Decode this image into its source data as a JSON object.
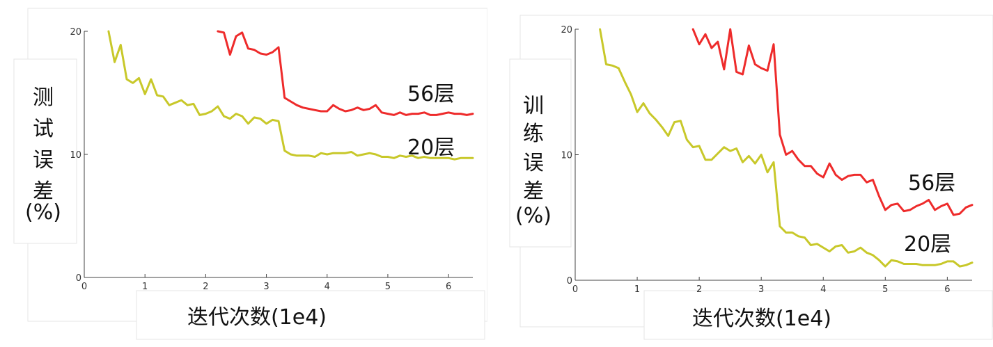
{
  "chart_data": [
    {
      "type": "line",
      "ylabel": "测试误差(%)",
      "ylabel_lines": [
        "测",
        "试",
        "误",
        "差",
        "(%)"
      ],
      "xlabel": "迭代次数(1e4)",
      "xlim": [
        0,
        6.4
      ],
      "ylim": [
        0,
        20
      ],
      "xticks": [
        "0",
        "1",
        "2",
        "3",
        "4",
        "5",
        "6"
      ],
      "yticks": [
        "0",
        "10",
        "20"
      ],
      "series": [
        {
          "name": "56层",
          "color": "#ee2b2b",
          "x": [
            2.2,
            2.3,
            2.4,
            2.5,
            2.6,
            2.7,
            2.8,
            2.9,
            3.0,
            3.1,
            3.2,
            3.3,
            3.4,
            3.5,
            3.6,
            3.7,
            3.8,
            3.9,
            4.0,
            4.1,
            4.2,
            4.3,
            4.4,
            4.5,
            4.6,
            4.7,
            4.8,
            4.9,
            5.0,
            5.1,
            5.2,
            5.3,
            5.4,
            5.5,
            5.6,
            5.7,
            5.8,
            5.9,
            6.0,
            6.1,
            6.2,
            6.3,
            6.4
          ],
          "y": [
            20.0,
            19.9,
            18.1,
            19.6,
            19.9,
            18.6,
            18.5,
            18.2,
            18.1,
            18.3,
            18.7,
            14.6,
            14.3,
            14.0,
            13.8,
            13.7,
            13.6,
            13.5,
            13.5,
            14.0,
            13.7,
            13.5,
            13.6,
            13.8,
            13.6,
            13.7,
            14.0,
            13.4,
            13.3,
            13.2,
            13.4,
            13.2,
            13.3,
            13.3,
            13.4,
            13.2,
            13.2,
            13.3,
            13.4,
            13.3,
            13.3,
            13.2,
            13.3
          ]
        },
        {
          "name": "20层",
          "color": "#c8c82a",
          "x": [
            0.4,
            0.5,
            0.6,
            0.7,
            0.8,
            0.9,
            1.0,
            1.1,
            1.2,
            1.3,
            1.4,
            1.5,
            1.6,
            1.7,
            1.8,
            1.9,
            2.0,
            2.1,
            2.2,
            2.3,
            2.4,
            2.5,
            2.6,
            2.7,
            2.8,
            2.9,
            3.0,
            3.1,
            3.2,
            3.3,
            3.4,
            3.5,
            3.6,
            3.7,
            3.8,
            3.9,
            4.0,
            4.1,
            4.2,
            4.3,
            4.4,
            4.5,
            4.6,
            4.7,
            4.8,
            4.9,
            5.0,
            5.1,
            5.2,
            5.3,
            5.4,
            5.5,
            5.6,
            5.7,
            5.8,
            5.9,
            6.0,
            6.1,
            6.2,
            6.3,
            6.4
          ],
          "y": [
            20.0,
            17.5,
            18.9,
            16.1,
            15.8,
            16.2,
            14.9,
            16.1,
            14.8,
            14.7,
            14.0,
            14.2,
            14.4,
            14.0,
            14.1,
            13.2,
            13.3,
            13.5,
            13.9,
            13.1,
            12.9,
            13.3,
            13.1,
            12.5,
            13.0,
            12.9,
            12.5,
            12.8,
            12.7,
            10.3,
            10.0,
            9.9,
            9.9,
            9.9,
            9.8,
            10.1,
            10.0,
            10.1,
            10.1,
            10.1,
            10.2,
            9.9,
            10.0,
            10.1,
            10.0,
            9.8,
            9.8,
            9.7,
            9.9,
            9.8,
            9.9,
            9.7,
            9.8,
            9.7,
            9.7,
            9.7,
            9.7,
            9.6,
            9.7,
            9.7,
            9.7
          ]
        }
      ]
    },
    {
      "type": "line",
      "ylabel": "训练误差(%)",
      "ylabel_lines": [
        "训",
        "练",
        "误",
        "差",
        "(%)"
      ],
      "xlabel": "迭代次数(1e4)",
      "xlim": [
        0,
        6.4
      ],
      "ylim": [
        0,
        20
      ],
      "xticks": [
        "0",
        "1",
        "2",
        "3",
        "4",
        "5",
        "6"
      ],
      "yticks": [
        "0",
        "10",
        "20"
      ],
      "series": [
        {
          "name": "56层",
          "color": "#ee2b2b",
          "x": [
            1.9,
            2.0,
            2.1,
            2.2,
            2.3,
            2.4,
            2.5,
            2.6,
            2.7,
            2.8,
            2.9,
            3.0,
            3.1,
            3.2,
            3.3,
            3.4,
            3.5,
            3.6,
            3.7,
            3.8,
            3.9,
            4.0,
            4.1,
            4.2,
            4.3,
            4.4,
            4.5,
            4.6,
            4.7,
            4.8,
            4.9,
            5.0,
            5.1,
            5.2,
            5.3,
            5.4,
            5.5,
            5.6,
            5.7,
            5.8,
            5.9,
            6.0,
            6.1,
            6.2,
            6.3,
            6.4
          ],
          "y": [
            20.0,
            18.8,
            19.6,
            18.5,
            19.0,
            16.8,
            20.0,
            16.6,
            16.4,
            18.7,
            17.2,
            16.9,
            16.7,
            18.8,
            11.6,
            10.0,
            10.3,
            9.6,
            9.1,
            9.1,
            8.5,
            8.2,
            9.3,
            8.4,
            8.0,
            8.3,
            8.4,
            8.4,
            7.8,
            8.0,
            6.7,
            5.6,
            6.0,
            6.1,
            5.5,
            5.6,
            5.9,
            6.1,
            6.4,
            5.6,
            5.9,
            6.1,
            5.2,
            5.3,
            5.8,
            6.0
          ]
        },
        {
          "name": "20层",
          "color": "#c8c82a",
          "x": [
            0.4,
            0.5,
            0.6,
            0.7,
            0.8,
            0.9,
            1.0,
            1.1,
            1.2,
            1.3,
            1.4,
            1.5,
            1.6,
            1.7,
            1.8,
            1.9,
            2.0,
            2.1,
            2.2,
            2.3,
            2.4,
            2.5,
            2.6,
            2.7,
            2.8,
            2.9,
            3.0,
            3.1,
            3.2,
            3.3,
            3.4,
            3.5,
            3.6,
            3.7,
            3.8,
            3.9,
            4.0,
            4.1,
            4.2,
            4.3,
            4.4,
            4.5,
            4.6,
            4.7,
            4.8,
            4.9,
            5.0,
            5.1,
            5.2,
            5.3,
            5.4,
            5.5,
            5.6,
            5.7,
            5.8,
            5.9,
            6.0,
            6.1,
            6.2,
            6.3,
            6.4
          ],
          "y": [
            20.0,
            17.2,
            17.1,
            16.9,
            15.8,
            14.8,
            13.4,
            14.1,
            13.3,
            12.8,
            12.2,
            11.5,
            12.6,
            12.7,
            11.2,
            10.6,
            10.7,
            9.6,
            9.6,
            10.1,
            10.6,
            10.3,
            10.5,
            9.4,
            9.9,
            9.3,
            10.0,
            8.6,
            9.4,
            4.3,
            3.8,
            3.8,
            3.5,
            3.4,
            2.8,
            2.9,
            2.6,
            2.3,
            2.7,
            2.8,
            2.2,
            2.3,
            2.6,
            2.2,
            2.0,
            1.6,
            1.1,
            1.6,
            1.5,
            1.3,
            1.3,
            1.3,
            1.2,
            1.2,
            1.2,
            1.3,
            1.5,
            1.5,
            1.1,
            1.2,
            1.4
          ]
        }
      ]
    }
  ]
}
